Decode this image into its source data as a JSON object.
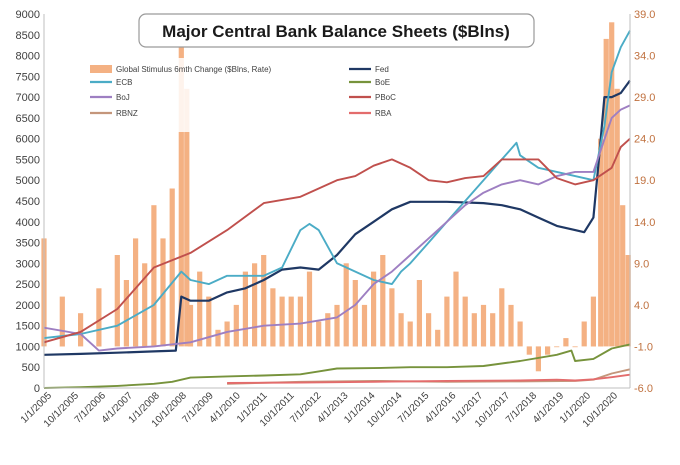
{
  "chart_data": {
    "type": "line",
    "title": "Major Central Bank Balance Sheets ($Blns)",
    "xlabel": "",
    "ylabel": "",
    "x_ticks": [
      "1/1/2005",
      "10/1/2005",
      "7/1/2006",
      "4/1/2007",
      "1/1/2008",
      "10/1/2008",
      "7/1/2009",
      "4/1/2010",
      "1/1/2011",
      "10/1/2011",
      "7/1/2012",
      "4/1/2013",
      "1/1/2014",
      "10/1/2014",
      "7/1/2015",
      "4/1/2016",
      "1/1/2017",
      "10/1/2017",
      "7/1/2018",
      "4/1/2019",
      "1/1/2020",
      "10/1/2020"
    ],
    "x_range": [
      2005.0,
      2021.0
    ],
    "ylim_left": [
      0,
      9000
    ],
    "yticks_left": [
      "0",
      "500",
      "1000",
      "1500",
      "2000",
      "2500",
      "3000",
      "3500",
      "4000",
      "4500",
      "5000",
      "5500",
      "6000",
      "6500",
      "7000",
      "7500",
      "8000",
      "8500",
      "9000"
    ],
    "ylim_right": [
      -6,
      39
    ],
    "yticks_right": [
      "-6.0",
      "-1.0",
      "4.0",
      "9.0",
      "14.0",
      "19.0",
      "24.0",
      "29.0",
      "34.0",
      "39.0"
    ],
    "legend_position": "top-left",
    "grid": false,
    "bar_series": {
      "name": "Global Stimulus 6mth Change ($Blns, Rate)",
      "axis": "right",
      "color": "#f4b183",
      "x": [
        2005.0,
        2005.5,
        2006.0,
        2006.5,
        2007.0,
        2007.25,
        2007.5,
        2007.75,
        2008.0,
        2008.25,
        2008.5,
        2008.75,
        2008.9,
        2009.0,
        2009.25,
        2009.5,
        2009.75,
        2010.0,
        2010.25,
        2010.5,
        2010.75,
        2011.0,
        2011.25,
        2011.5,
        2011.75,
        2012.0,
        2012.25,
        2012.5,
        2012.75,
        2013.0,
        2013.25,
        2013.5,
        2013.75,
        2014.0,
        2014.25,
        2014.5,
        2014.75,
        2015.0,
        2015.25,
        2015.5,
        2015.75,
        2016.0,
        2016.25,
        2016.5,
        2016.75,
        2017.0,
        2017.25,
        2017.5,
        2017.75,
        2018.0,
        2018.25,
        2018.5,
        2018.75,
        2019.0,
        2019.25,
        2019.5,
        2019.75,
        2020.0,
        2020.2,
        2020.35,
        2020.5,
        2020.65,
        2020.8,
        2020.95
      ],
      "values": [
        12,
        5,
        3,
        6,
        10,
        7,
        12,
        9,
        16,
        12,
        18,
        37,
        30,
        4,
        8,
        5,
        1,
        2,
        4,
        8,
        9,
        10,
        6,
        5,
        5,
        5,
        8,
        2,
        3,
        4,
        9,
        7,
        4,
        8,
        10,
        6,
        3,
        2,
        7,
        3,
        1,
        5,
        8,
        5,
        3,
        4,
        3,
        6,
        4,
        2,
        -2,
        -4,
        -2,
        -1,
        0,
        -1,
        2,
        5,
        24,
        36,
        38,
        30,
        16,
        10
      ]
    },
    "series": [
      {
        "name": "Fed",
        "axis": "left",
        "color": "#1f3864",
        "x": [
          2005.0,
          2006.0,
          2007.0,
          2008.0,
          2008.6,
          2008.75,
          2009.0,
          2009.5,
          2010.0,
          2010.5,
          2011.0,
          2011.5,
          2012.0,
          2012.5,
          2013.0,
          2013.5,
          2014.0,
          2014.5,
          2015.0,
          2016.0,
          2017.0,
          2017.5,
          2018.0,
          2018.5,
          2019.0,
          2019.5,
          2019.75,
          2020.0,
          2020.15,
          2020.3,
          2020.5,
          2020.75,
          2021.0
        ],
        "values": [
          800,
          820,
          850,
          880,
          900,
          2200,
          2100,
          2100,
          2300,
          2400,
          2600,
          2850,
          2900,
          2850,
          3200,
          3700,
          4000,
          4300,
          4480,
          4480,
          4450,
          4400,
          4300,
          4100,
          3900,
          3800,
          3750,
          4100,
          5500,
          7000,
          7000,
          7100,
          7400
        ]
      },
      {
        "name": "ECB",
        "axis": "left",
        "color": "#4bacc6",
        "x": [
          2005.0,
          2006.0,
          2007.0,
          2008.0,
          2008.75,
          2009.0,
          2009.5,
          2010.0,
          2010.5,
          2011.0,
          2011.5,
          2012.0,
          2012.25,
          2012.5,
          2013.0,
          2013.5,
          2014.0,
          2014.5,
          2014.75,
          2015.0,
          2015.5,
          2016.0,
          2016.5,
          2017.0,
          2017.5,
          2017.9,
          2018.0,
          2018.5,
          2019.0,
          2019.5,
          2020.0,
          2020.3,
          2020.5,
          2020.75,
          2021.0
        ],
        "values": [
          1200,
          1300,
          1500,
          2000,
          2800,
          2600,
          2500,
          2700,
          2700,
          2700,
          2900,
          3800,
          3950,
          3800,
          3000,
          2800,
          2600,
          2500,
          2800,
          3000,
          3500,
          4000,
          4500,
          5000,
          5500,
          5900,
          5600,
          5300,
          5200,
          5100,
          5000,
          6300,
          7600,
          8200,
          8600
        ]
      },
      {
        "name": "BoJ",
        "axis": "left",
        "color": "#9e7fc2",
        "x": [
          2005.0,
          2006.0,
          2006.5,
          2007.0,
          2008.0,
          2009.0,
          2010.0,
          2011.0,
          2012.0,
          2013.0,
          2013.5,
          2014.0,
          2014.5,
          2015.0,
          2015.5,
          2016.0,
          2016.5,
          2017.0,
          2017.5,
          2018.0,
          2018.5,
          2019.0,
          2019.5,
          2020.0,
          2020.5,
          2020.75,
          2021.0
        ],
        "values": [
          1450,
          1300,
          900,
          950,
          1000,
          1100,
          1350,
          1500,
          1550,
          1700,
          2000,
          2500,
          2800,
          3200,
          3600,
          4000,
          4400,
          4700,
          4900,
          5000,
          4900,
          5100,
          5200,
          5200,
          6500,
          6700,
          6800
        ]
      },
      {
        "name": "BoE",
        "axis": "left",
        "color": "#77933c",
        "x": [
          2005.0,
          2006.0,
          2007.0,
          2008.0,
          2008.5,
          2009.0,
          2010.0,
          2011.0,
          2012.0,
          2012.5,
          2013.0,
          2014.0,
          2015.0,
          2016.0,
          2017.0,
          2018.0,
          2019.0,
          2019.4,
          2019.5,
          2020.0,
          2020.5,
          2021.0
        ],
        "values": [
          0,
          20,
          50,
          100,
          150,
          250,
          280,
          300,
          330,
          400,
          470,
          480,
          500,
          500,
          530,
          650,
          800,
          900,
          650,
          700,
          950,
          1050
        ]
      },
      {
        "name": "PBoC",
        "axis": "left",
        "color": "#c0504d",
        "x": [
          2005.0,
          2006.0,
          2007.0,
          2008.0,
          2009.0,
          2010.0,
          2011.0,
          2012.0,
          2013.0,
          2013.5,
          2014.0,
          2014.5,
          2015.0,
          2015.5,
          2016.0,
          2016.5,
          2017.0,
          2017.5,
          2018.0,
          2018.5,
          2019.0,
          2019.5,
          2020.0,
          2020.5,
          2020.75,
          2021.0
        ],
        "values": [
          1100,
          1350,
          1900,
          2900,
          3250,
          3800,
          4450,
          4600,
          5000,
          5100,
          5350,
          5500,
          5300,
          5000,
          4950,
          5050,
          5100,
          5500,
          5500,
          5500,
          5050,
          4900,
          5000,
          5300,
          5800,
          6000
        ]
      },
      {
        "name": "RBNZ",
        "axis": "left",
        "color": "#c4967b",
        "x": [
          2010.0,
          2012.0,
          2014.0,
          2016.0,
          2018.0,
          2019.5,
          2020.0,
          2020.5,
          2021.0
        ],
        "values": [
          100,
          150,
          170,
          150,
          160,
          170,
          200,
          350,
          450
        ]
      },
      {
        "name": "RBA",
        "axis": "left",
        "color": "#e36c6c",
        "x": [
          2010.0,
          2012.0,
          2014.0,
          2016.0,
          2018.0,
          2019.0,
          2019.5,
          2020.0,
          2020.5,
          2021.0
        ],
        "values": [
          120,
          130,
          150,
          170,
          180,
          200,
          180,
          210,
          260,
          320
        ]
      }
    ],
    "legend_entries": [
      "Global Stimulus 6mth Change ($Blns, Rate)",
      "Fed",
      "ECB",
      "BoE",
      "BoJ",
      "PBoC",
      "RBNZ",
      "RBA"
    ]
  }
}
